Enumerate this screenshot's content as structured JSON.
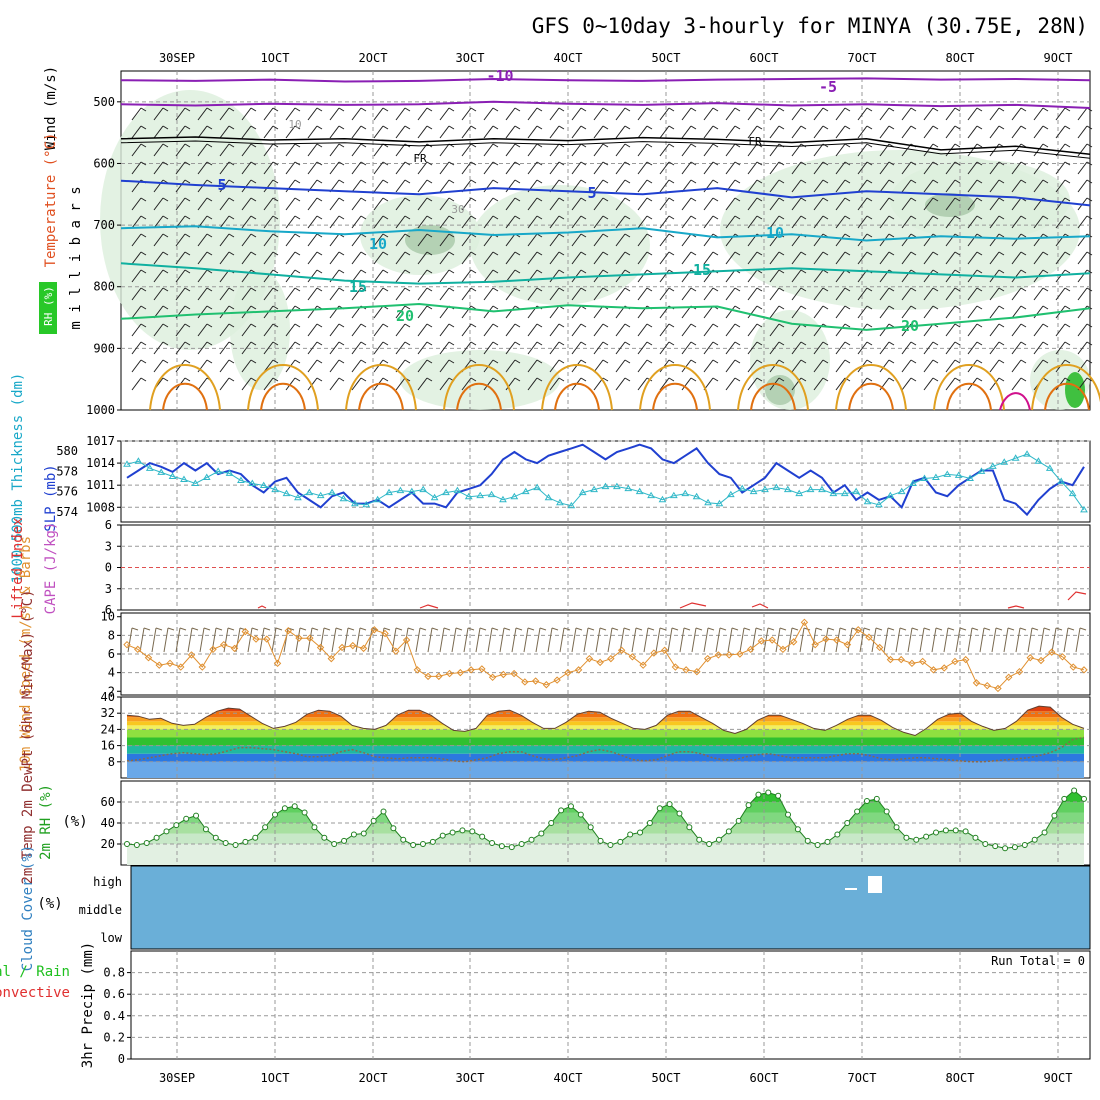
{
  "title": "GFS 0~10day 3-hourly for MINYA (30.75E, 28N)",
  "colors": {
    "purple": "#8a1fb4",
    "blue": "#2040d0",
    "cyan": "#18a8c8",
    "teal": "#10b0a0",
    "green": "#20c070",
    "orange": "#e0a020",
    "dark_orange": "#e07010",
    "magenta": "#d0108c",
    "slp": "#2040d0",
    "thickness": "#30b8c8",
    "wind": "#e09030",
    "cloud": "#6aafd8",
    "rh_fill": "#50d050"
  },
  "chart_data": [
    {
      "type": "line",
      "panel": "upper-air cross section",
      "x_dates": [
        "30SEP",
        "1OCT",
        "2OCT",
        "3OCT",
        "4OCT",
        "5OCT",
        "6OCT",
        "7OCT",
        "8OCT",
        "9OCT"
      ],
      "x_dates_labels": [
        "30SEP",
        "1OCT",
        "2OCT",
        "3OCT",
        "4OCT",
        "5OCT",
        "6OCT",
        "7OCT",
        "8OCT",
        "9OCT"
      ],
      "x_tick_labels": [
        "30SEP",
        "1OCT",
        "2OCT",
        "3OCT",
        "4OCT",
        "5OCT",
        "6OCT",
        "7OCT",
        "8OCT",
        "9OCT"
      ],
      "x_display": [
        "30SEP",
        "1OCT",
        "2OCT",
        "3OCT",
        "4OCT",
        "5OCT",
        "6OCT",
        "7OCT",
        "8OCT",
        "9OCT"
      ],
      "ylabel": "m i l l i b a r s",
      "yticks": [
        500,
        600,
        700,
        800,
        900,
        1000
      ],
      "ylim": [
        450,
        1000
      ],
      "side_labels": [
        "Wind (m/s)",
        "Temperature (°C)",
        "RH (%)"
      ],
      "isotherms": [
        {
          "label": "-10",
          "levels": [
            465,
            466,
            464,
            467,
            466,
            463,
            465,
            466,
            464,
            463,
            462,
            464,
            463,
            465
          ]
        },
        {
          "label": "-5",
          "levels": [
            504,
            506,
            503,
            505,
            504,
            500,
            503,
            505,
            502,
            506,
            504,
            507,
            505,
            510
          ]
        },
        {
          "label": "FR",
          "levels": [
            560,
            557,
            562,
            560,
            565,
            560,
            563,
            558,
            561,
            566,
            560,
            578,
            572,
            585
          ]
        },
        {
          "label": "5",
          "levels": [
            628,
            635,
            640,
            645,
            650,
            640,
            645,
            650,
            640,
            655,
            645,
            650,
            655,
            668
          ]
        },
        {
          "label": "10",
          "levels": [
            705,
            702,
            710,
            715,
            708,
            716,
            712,
            705,
            720,
            715,
            725,
            718,
            722,
            718
          ]
        },
        {
          "label": "15",
          "levels": [
            762,
            770,
            780,
            790,
            795,
            792,
            785,
            780,
            775,
            770,
            775,
            780,
            785,
            778
          ]
        },
        {
          "label": "20",
          "levels": [
            852,
            845,
            840,
            835,
            828,
            840,
            830,
            835,
            832,
            860,
            870,
            860,
            850,
            835
          ]
        }
      ],
      "isotherm_labels": [
        "-10",
        "-5",
        "FR",
        "FR",
        "5",
        "5",
        "10",
        "10",
        "15",
        "15",
        "20",
        "20",
        "10",
        "30"
      ]
    },
    {
      "type": "line",
      "panel": "SLP and thickness",
      "ylabel_left": "1000-500mb Thickness (dm)",
      "ylabel_right": "SLP (mb)",
      "yticks_thickness": [
        574,
        576,
        578,
        580
      ],
      "yticks_slp": [
        1008,
        1011,
        1014,
        1017
      ],
      "slp": [
        1012,
        1013,
        1014,
        1013.5,
        1012.8,
        1014,
        1013,
        1014,
        1012.5,
        1013,
        1012.5,
        1011,
        1010,
        1011.5,
        1012,
        1010,
        1009,
        1008,
        1009.5,
        1010,
        1008.5,
        1008.5,
        1009,
        1008,
        1009,
        1010,
        1008.5,
        1008.5,
        1008,
        1010,
        1010.5,
        1011,
        1012.5,
        1014.5,
        1015.5,
        1014.5,
        1014,
        1015,
        1015.5,
        1016,
        1016.5,
        1015.5,
        1014.5,
        1015.5,
        1016,
        1016.5,
        1016,
        1014.5,
        1014,
        1015,
        1016,
        1014,
        1012.5,
        1012,
        1010,
        1011,
        1012,
        1014,
        1013,
        1012,
        1013,
        1012,
        1010,
        1011,
        1009,
        1010,
        1009,
        1009.5,
        1008,
        1011.5,
        1012,
        1010,
        1009.5,
        1011,
        1012,
        1013,
        1013,
        1009,
        1008.5,
        1007,
        1009,
        1010.5,
        1011.5,
        1011,
        1013.5
      ],
      "thickness": [
        578.7,
        579,
        578.3,
        577.9,
        577.5,
        577.2,
        576.8,
        577.4,
        578,
        577.8,
        577.1,
        576.8,
        576.6,
        576.2,
        575.8,
        575.4,
        575.9,
        575.6,
        575.9,
        575.3,
        574.8,
        574.7,
        575.2,
        575.9,
        576.1,
        576,
        576.2,
        575.4,
        575.9,
        576.1,
        575.5,
        575.6,
        575.7,
        575.2,
        575.5,
        576,
        576.4,
        575.4,
        574.9,
        574.6,
        575.9,
        576.2,
        576.5,
        576.5,
        576.3,
        576,
        575.6,
        575.2,
        575.6,
        575.8,
        575.5,
        574.9,
        574.8,
        575.7,
        576.3,
        576,
        576.2,
        576.4,
        576.2,
        575.8,
        576.2,
        576.2,
        575.8,
        575.8,
        576,
        575,
        574.7,
        575.6,
        576,
        576.8,
        577.3,
        577.4,
        577.7,
        577.6,
        577.3,
        578,
        578.5,
        578.9,
        579.3,
        579.7,
        579,
        578.3,
        577,
        575.8,
        574.2
      ]
    },
    {
      "type": "line",
      "panel": "stability",
      "ylabel_left": "Lifted Index",
      "ylabel_right": "CAPE (J/kg)",
      "yticks": [
        -6,
        -3,
        0,
        3,
        6
      ],
      "ylim": [
        -6,
        6
      ],
      "cape": [
        0,
        0,
        0,
        0,
        0,
        0,
        0,
        0,
        0,
        0,
        0,
        0,
        0,
        0,
        0,
        0,
        0,
        0,
        0,
        0,
        0,
        0,
        0,
        0,
        0,
        0,
        0,
        0,
        0,
        0,
        0,
        0,
        0,
        0,
        0,
        0,
        0,
        0,
        0,
        0,
        0,
        0,
        0,
        0,
        0,
        0,
        0,
        0,
        0,
        0,
        0,
        0,
        0,
        0,
        0,
        0,
        0,
        0,
        0,
        0,
        0,
        0,
        0,
        0,
        0,
        0,
        0,
        0,
        0,
        0,
        0,
        0,
        0,
        0,
        0,
        0,
        0,
        0,
        0,
        0,
        0,
        0,
        0,
        2.6,
        2.6
      ]
    },
    {
      "type": "line",
      "panel": "10m wind",
      "ylabel": "10m Wind Speed (m/s) & Barbs",
      "yticks": [
        2,
        4,
        6,
        8,
        10
      ],
      "ylim": [
        2,
        10
      ],
      "speed": [
        7,
        6.5,
        5.6,
        4.8,
        5,
        4.6,
        5.9,
        4.6,
        6.5,
        7,
        6.6,
        8.4,
        7.6,
        7.6,
        5,
        8.5,
        7.7,
        7.7,
        6.7,
        5.5,
        6.7,
        6.9,
        6.6,
        8.6,
        8.2,
        6.3,
        7.5,
        4.3,
        3.6,
        3.6,
        3.9,
        4,
        4.3,
        4.4,
        3.5,
        3.8,
        3.9,
        3,
        3.1,
        2.7,
        3.2,
        4,
        4.3,
        5.5,
        5.1,
        5.5,
        6.4,
        5.7,
        4.8,
        6.1,
        6.4,
        4.6,
        4.3,
        4.1,
        5.5,
        5.9,
        5.9,
        6,
        6.5,
        7.4,
        7.5,
        6.5,
        7.3,
        9.4,
        7,
        7.6,
        7.5,
        7,
        8.6,
        7.8,
        6.7,
        5.4,
        5.4,
        5,
        5.2,
        4.3,
        4.5,
        5.2,
        5.4,
        2.9,
        2.6,
        2.3,
        3.5,
        4.1,
        5.6,
        5.3,
        6.2,
        5.7,
        4.6,
        4.3
      ]
    },
    {
      "type": "area",
      "panel": "2m temperature",
      "ylabel": "2m Temp 2m DewPt (6hr Min/Max) (°C)",
      "yticks": [
        8,
        16,
        24,
        32,
        40
      ],
      "ylim": [
        0,
        40
      ],
      "temp": [
        31,
        30.5,
        29,
        29.5,
        27,
        26,
        26.5,
        30,
        33,
        34.5,
        34,
        30.5,
        27,
        24.5,
        25.5,
        27.5,
        31.5,
        33.5,
        33,
        30.5,
        26,
        24.5,
        24,
        26,
        31,
        33.5,
        33.5,
        31,
        27,
        23.5,
        23,
        24.5,
        31,
        33,
        33.5,
        31,
        27.5,
        24.5,
        24.5,
        27.5,
        31.5,
        33,
        32.5,
        29.5,
        27,
        24.5,
        24,
        26,
        31,
        33,
        33,
        30,
        27,
        23.5,
        22,
        24,
        28.5,
        31,
        31,
        29,
        27,
        24.5,
        23.5,
        26,
        29,
        31,
        31,
        28.5,
        25,
        22.5,
        21,
        24.5,
        29,
        31.5,
        32,
        28,
        25.5,
        23.5,
        24.5,
        28,
        33.5,
        35.5,
        35,
        30,
        26.5,
        24.5
      ],
      "dewpoint": [
        8.5,
        9,
        10,
        11,
        12,
        12.5,
        12,
        11.5,
        12,
        13.5,
        15,
        15,
        14.5,
        14,
        13,
        12,
        10.5,
        10.5,
        11,
        13,
        14,
        12.5,
        10.5,
        10,
        9.5,
        10,
        10,
        10,
        9.5,
        8.5,
        8,
        9,
        10,
        12,
        13,
        13,
        11,
        9.5,
        9,
        10,
        11,
        13,
        14,
        13,
        11,
        9,
        8.5,
        9,
        11,
        13,
        13,
        12,
        10,
        9,
        9,
        10.5,
        11.5,
        12,
        11,
        10,
        10,
        10,
        10,
        11,
        12,
        12,
        11,
        9.5,
        9,
        9.5,
        10,
        10,
        9.5,
        9,
        8.5,
        8,
        8,
        8.5,
        9,
        9.5,
        10,
        11,
        12.5,
        15,
        19,
        20
      ]
    },
    {
      "type": "area",
      "panel": "2m RH",
      "ylabel": "2m RH (%)",
      "yticks": [
        20,
        40,
        60
      ],
      "ylim": [
        0,
        80
      ],
      "rh": [
        20,
        19,
        21,
        26,
        32,
        38,
        44,
        47,
        34,
        26,
        21,
        19,
        22,
        26,
        36,
        48,
        54,
        56,
        50,
        36,
        26,
        20,
        23,
        29,
        30,
        42,
        51,
        35,
        24,
        19,
        20,
        22,
        28,
        31,
        33,
        32,
        27,
        21,
        18,
        17,
        20,
        24,
        30,
        40,
        52,
        56,
        48,
        36,
        23,
        19,
        22,
        29,
        31,
        40,
        54,
        58,
        49,
        36,
        24,
        20,
        24,
        32,
        42,
        57,
        67,
        69,
        66,
        48,
        34,
        23,
        19,
        22,
        29,
        40,
        51,
        61,
        63,
        51,
        36,
        26,
        24,
        27,
        31,
        33,
        33,
        32,
        26,
        20,
        18,
        16,
        17,
        19,
        24,
        31,
        47,
        63,
        71,
        63
      ]
    },
    {
      "type": "table",
      "panel": "cloud cover",
      "ylabel": "Cloud Cover (%)",
      "rows": [
        "high",
        "middle",
        "low"
      ]
    },
    {
      "type": "bar",
      "panel": "precip",
      "ylabel": "3hr Precip (mm)",
      "side_label_top": "Total / Rain",
      "side_label_bottom": "Convective",
      "yticks": [
        "0",
        "0.2",
        "0.4",
        "0.6",
        "0.8"
      ],
      "ylim": [
        0,
        1
      ],
      "run_total": "Run Total = 0",
      "values": []
    }
  ]
}
